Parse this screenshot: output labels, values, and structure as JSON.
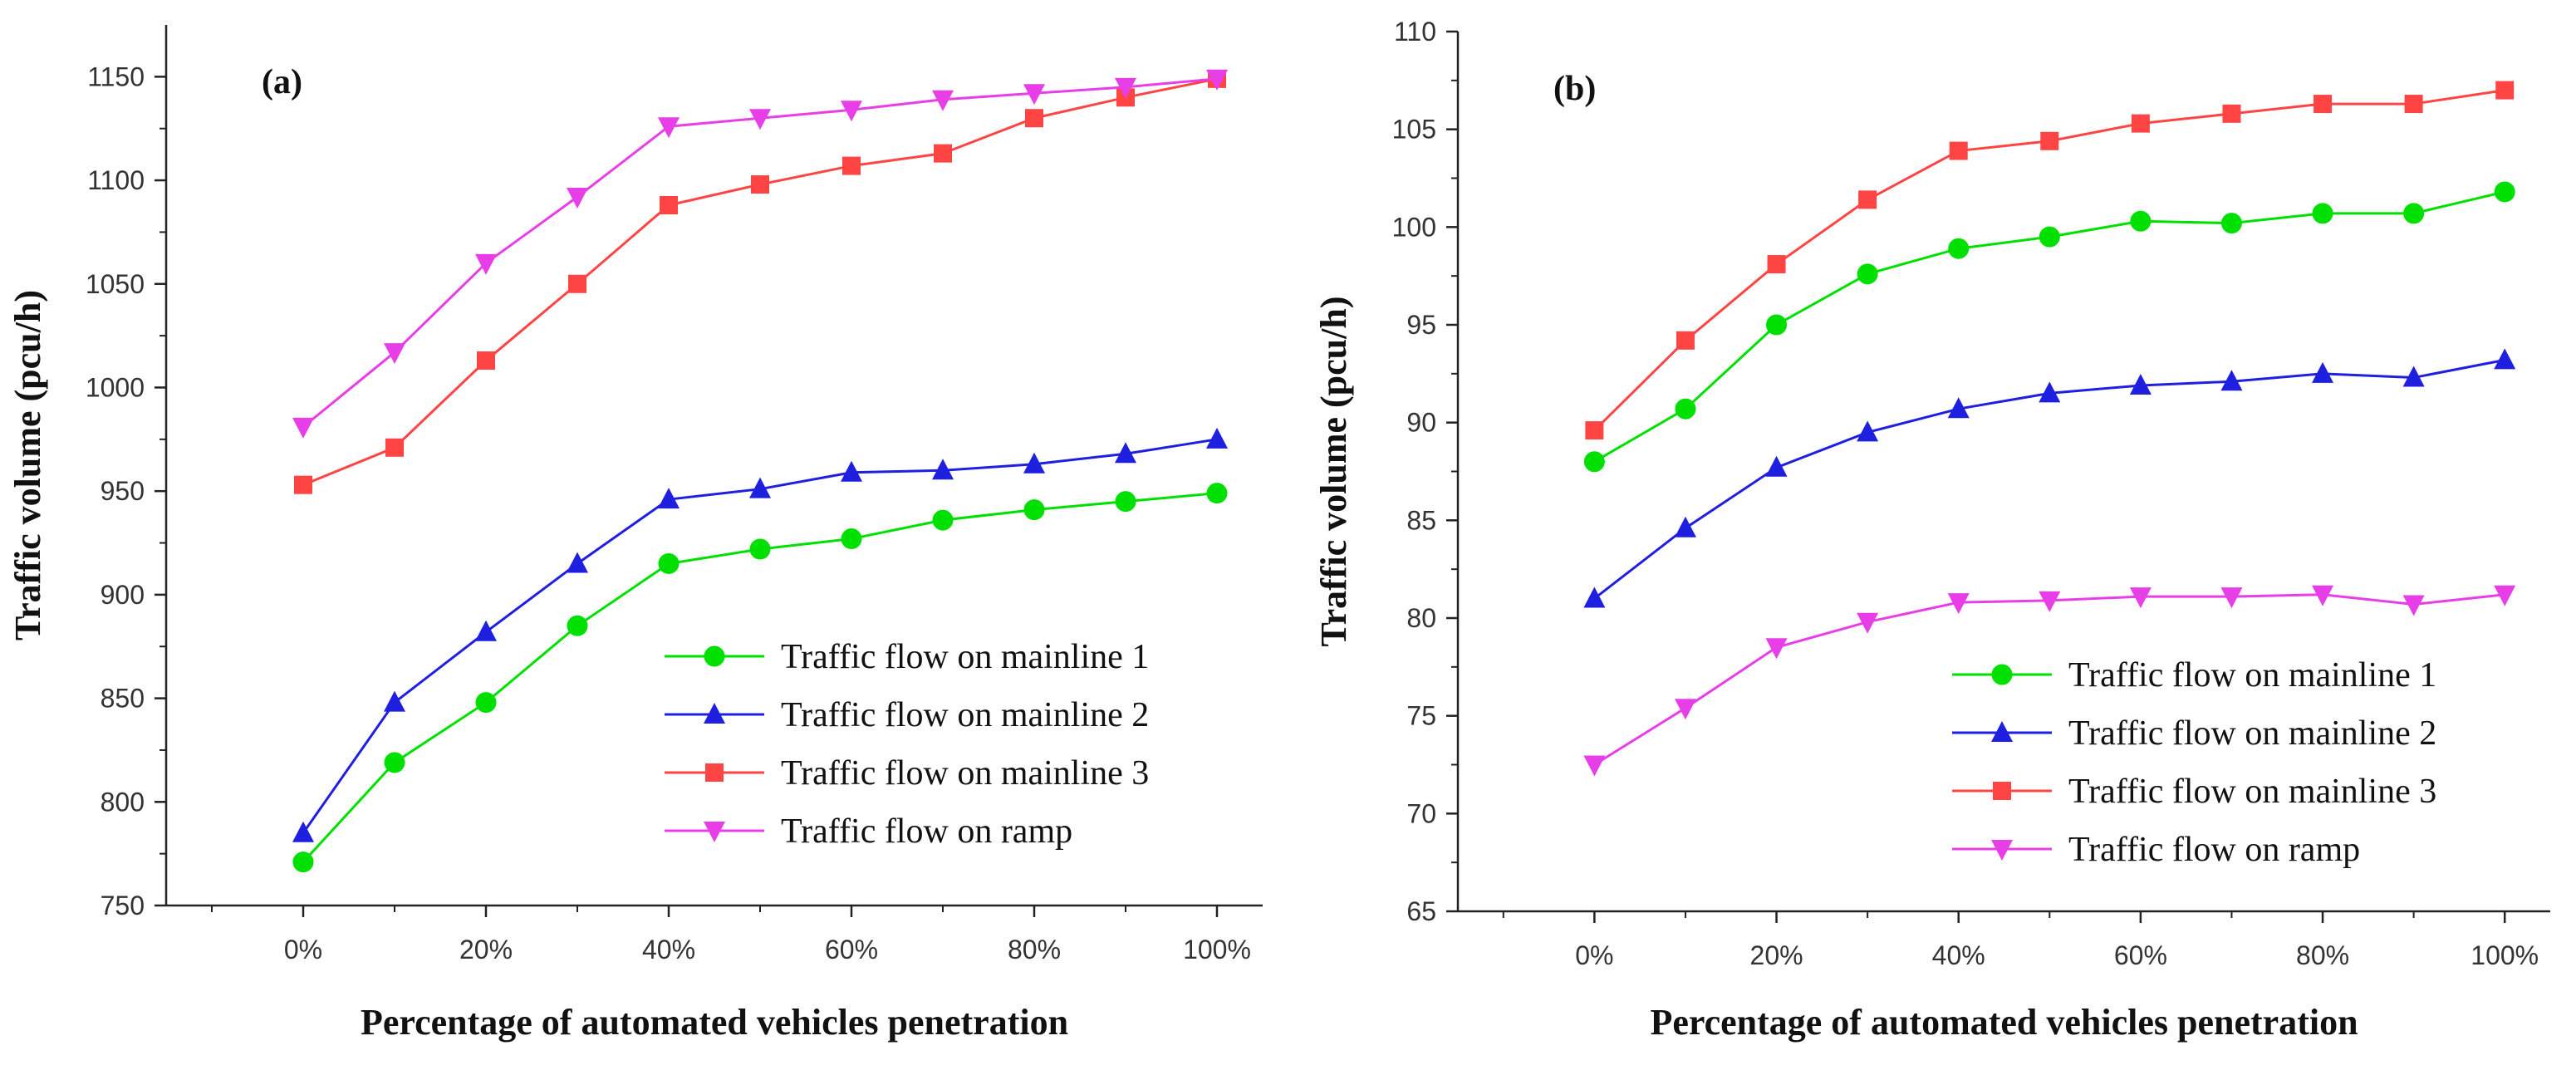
{
  "chart_data": [
    {
      "type": "line",
      "panel_label": "(a)",
      "xlabel": "Percentage of automated vehicles penetration",
      "ylabel": "Traffic volume (pcu/h)",
      "x": [
        0,
        10,
        20,
        30,
        40,
        50,
        60,
        70,
        80,
        90,
        100
      ],
      "xlim": [
        -15,
        105
      ],
      "xticks": [
        0,
        20,
        40,
        60,
        80,
        100
      ],
      "xtick_labels": [
        "0%",
        "20%",
        "40%",
        "60%",
        "80%",
        "100%"
      ],
      "ylim": [
        750,
        1175
      ],
      "yticks": [
        750,
        800,
        850,
        900,
        950,
        1000,
        1050,
        1100,
        1150
      ],
      "ytick_labels": [
        "750",
        "800",
        "850",
        "900",
        "950",
        "1000",
        "1050",
        "1100",
        "1150"
      ],
      "legend_position": "lower-right",
      "series": [
        {
          "name": "Traffic flow on mainline 1",
          "color": "#00e000",
          "marker": "circle",
          "values": [
            771,
            819,
            848,
            885,
            915,
            922,
            927,
            936,
            941,
            945,
            949
          ]
        },
        {
          "name": "Traffic flow on mainline 2",
          "color": "#1f1fe0",
          "marker": "triangle-up",
          "values": [
            785,
            848,
            882,
            915,
            946,
            951,
            959,
            960,
            963,
            968,
            975
          ]
        },
        {
          "name": "Traffic flow on mainline 3",
          "color": "#ff4444",
          "marker": "square",
          "values": [
            953,
            971,
            1013,
            1050,
            1088,
            1098,
            1107,
            1113,
            1130,
            1140,
            1149
          ]
        },
        {
          "name": "Traffic flow on ramp",
          "color": "#e83ee8",
          "marker": "triangle-down",
          "values": [
            981,
            1017,
            1060,
            1092,
            1126,
            1130,
            1134,
            1139,
            1142,
            1145,
            1149
          ]
        }
      ]
    },
    {
      "type": "line",
      "panel_label": "(b)",
      "xlabel": "Percentage of automated vehicles penetration",
      "ylabel": "Traffic volume (pcu/h)",
      "x": [
        0,
        10,
        20,
        30,
        40,
        50,
        60,
        70,
        80,
        90,
        100
      ],
      "xlim": [
        -15,
        105
      ],
      "xticks": [
        0,
        20,
        40,
        60,
        80,
        100
      ],
      "xtick_labels": [
        "0%",
        "20%",
        "40%",
        "60%",
        "80%",
        "100%"
      ],
      "ylim": [
        65,
        110
      ],
      "yticks": [
        65,
        70,
        75,
        80,
        85,
        90,
        95,
        100,
        105,
        110
      ],
      "ytick_labels": [
        "65",
        "70",
        "75",
        "80",
        "85",
        "90",
        "95",
        "100",
        "105",
        "110"
      ],
      "legend_position": "lower-right",
      "series": [
        {
          "name": "Traffic flow on mainline 1",
          "color": "#00e000",
          "marker": "circle",
          "values": [
            88.0,
            90.7,
            95.0,
            97.6,
            98.9,
            99.5,
            100.3,
            100.2,
            100.7,
            100.7,
            101.8
          ]
        },
        {
          "name": "Traffic flow on mainline 2",
          "color": "#1f1fe0",
          "marker": "triangle-up",
          "values": [
            81.0,
            84.6,
            87.7,
            89.5,
            90.7,
            91.5,
            91.9,
            92.1,
            92.5,
            92.3,
            93.2
          ]
        },
        {
          "name": "Traffic flow on mainline 3",
          "color": "#ff4444",
          "marker": "square",
          "values": [
            89.6,
            94.2,
            98.1,
            101.4,
            103.9,
            104.4,
            105.3,
            105.8,
            106.3,
            106.3,
            107.0
          ]
        },
        {
          "name": "Traffic flow on ramp",
          "color": "#e83ee8",
          "marker": "triangle-down",
          "values": [
            72.5,
            75.4,
            78.5,
            79.8,
            80.8,
            80.9,
            81.1,
            81.1,
            81.2,
            80.7,
            81.2
          ]
        }
      ]
    }
  ]
}
